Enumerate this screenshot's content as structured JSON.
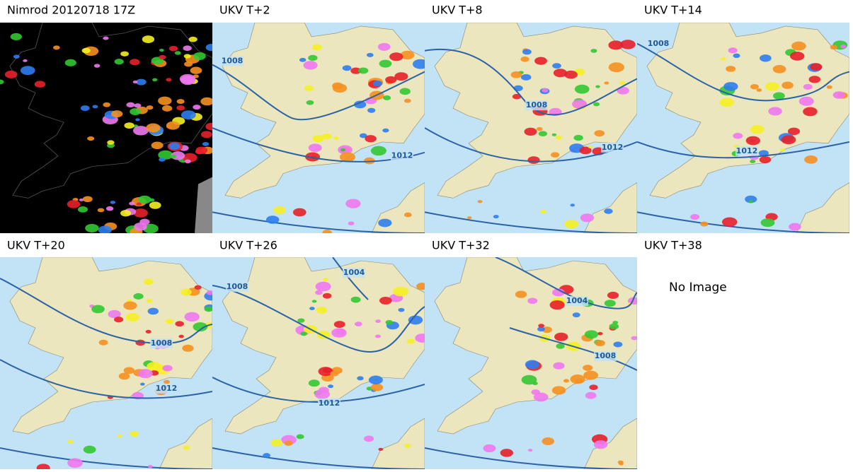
{
  "panels": [
    {
      "title": "Nimrod 20120718 17Z"
    },
    {
      "title": "UKV T+2",
      "isobar_labels": [
        "1008",
        "1012"
      ]
    },
    {
      "title": "UKV T+8",
      "isobar_labels": [
        "1008",
        "1012"
      ]
    },
    {
      "title": "UKV T+14",
      "isobar_labels": [
        "1008",
        "1012"
      ]
    },
    {
      "title": "UKV T+20",
      "isobar_labels": [
        "1008",
        "1012"
      ]
    },
    {
      "title": "UKV T+26",
      "isobar_labels": [
        "1008",
        "1004",
        "1012"
      ]
    },
    {
      "title": "UKV T+32",
      "isobar_labels": [
        "1004",
        "1008"
      ]
    },
    {
      "title": "UKV T+38",
      "message": "No Image"
    }
  ]
}
